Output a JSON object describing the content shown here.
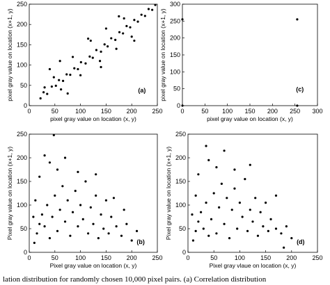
{
  "caption": "lation distribution for randomly chosen 10,000 pixel pairs. (a) Correlation distribution",
  "chart_data": [
    {
      "type": "scatter",
      "panel_tag": "(a)",
      "xlabel": "pixel gray value on location (x, y)",
      "ylabel": "pixel gray value on location (x+1, y)",
      "xlim": [
        0,
        250
      ],
      "ylim": [
        0,
        250
      ],
      "xticks": [
        "0",
        "50",
        "100",
        "150",
        "200",
        "250"
      ],
      "yticks": [
        "0",
        "50",
        "100",
        "150",
        "200",
        "250"
      ],
      "grid": false,
      "point_color": "#000000",
      "points": [
        [
          22,
          18
        ],
        [
          28,
          33
        ],
        [
          35,
          29
        ],
        [
          44,
          47
        ],
        [
          52,
          49
        ],
        [
          58,
          63
        ],
        [
          66,
          61
        ],
        [
          73,
          77
        ],
        [
          80,
          76
        ],
        [
          88,
          92
        ],
        [
          95,
          90
        ],
        [
          101,
          107
        ],
        [
          110,
          104
        ],
        [
          118,
          121
        ],
        [
          124,
          118
        ],
        [
          131,
          137
        ],
        [
          140,
          133
        ],
        [
          147,
          151
        ],
        [
          153,
          146
        ],
        [
          160,
          166
        ],
        [
          168,
          162
        ],
        [
          176,
          181
        ],
        [
          183,
          178
        ],
        [
          190,
          196
        ],
        [
          197,
          193
        ],
        [
          205,
          211
        ],
        [
          212,
          207
        ],
        [
          219,
          224
        ],
        [
          226,
          221
        ],
        [
          233,
          238
        ],
        [
          240,
          236
        ],
        [
          246,
          248
        ],
        [
          30,
          45
        ],
        [
          48,
          70
        ],
        [
          62,
          40
        ],
        [
          85,
          120
        ],
        [
          100,
          75
        ],
        [
          120,
          160
        ],
        [
          138,
          110
        ],
        [
          150,
          190
        ],
        [
          170,
          140
        ],
        [
          185,
          215
        ],
        [
          200,
          170
        ],
        [
          60,
          110
        ],
        [
          75,
          30
        ],
        [
          115,
          165
        ],
        [
          140,
          95
        ],
        [
          175,
          220
        ],
        [
          205,
          160
        ],
        [
          40,
          90
        ]
      ]
    },
    {
      "type": "scatter",
      "panel_tag": "(c)",
      "xlabel": "pixel gray value on location (x, y)",
      "ylabel": "pixel gray value on location (x+1, y)",
      "xlim": [
        0,
        300
      ],
      "ylim": [
        0,
        300
      ],
      "xticks": [
        "0",
        "50",
        "100",
        "150",
        "200",
        "250",
        "300"
      ],
      "yticks": [
        "0",
        "50",
        "100",
        "150",
        "200",
        "250",
        "300"
      ],
      "grid": false,
      "point_color": "#000000",
      "points": [
        [
          0,
          255
        ],
        [
          255,
          255
        ],
        [
          0,
          0
        ],
        [
          255,
          0
        ]
      ]
    },
    {
      "type": "scatter",
      "panel_tag": "(b)",
      "xlabel": "Pixel gray value on location (x, y)",
      "ylabel": "Pixel gray value on location (x+1, y)",
      "xlim": [
        0,
        250
      ],
      "ylim": [
        0,
        250
      ],
      "xticks": [
        "0",
        "50",
        "100",
        "150",
        "200",
        "250"
      ],
      "yticks": [
        "0",
        "50",
        "100",
        "150",
        "200",
        "250"
      ],
      "grid": false,
      "point_color": "#000000",
      "points": [
        [
          10,
          20
        ],
        [
          15,
          40
        ],
        [
          20,
          60
        ],
        [
          25,
          80
        ],
        [
          30,
          55
        ],
        [
          35,
          100
        ],
        [
          40,
          30
        ],
        [
          45,
          75
        ],
        [
          50,
          120
        ],
        [
          55,
          45
        ],
        [
          60,
          90
        ],
        [
          65,
          140
        ],
        [
          70,
          65
        ],
        [
          75,
          110
        ],
        [
          80,
          35
        ],
        [
          85,
          85
        ],
        [
          90,
          130
        ],
        [
          95,
          55
        ],
        [
          100,
          100
        ],
        [
          105,
          70
        ],
        [
          110,
          150
        ],
        [
          115,
          40
        ],
        [
          120,
          95
        ],
        [
          125,
          60
        ],
        [
          130,
          120
        ],
        [
          135,
          30
        ],
        [
          140,
          80
        ],
        [
          145,
          50
        ],
        [
          150,
          110
        ],
        [
          155,
          40
        ],
        [
          160,
          75
        ],
        [
          170,
          55
        ],
        [
          180,
          35
        ],
        [
          190,
          60
        ],
        [
          200,
          25
        ],
        [
          210,
          45
        ],
        [
          20,
          160
        ],
        [
          40,
          190
        ],
        [
          55,
          175
        ],
        [
          70,
          200
        ],
        [
          30,
          205
        ],
        [
          95,
          170
        ],
        [
          48,
          248
        ],
        [
          12,
          110
        ],
        [
          8,
          75
        ],
        [
          165,
          115
        ],
        [
          185,
          90
        ],
        [
          130,
          165
        ]
      ]
    },
    {
      "type": "scatter",
      "panel_tag": "(d)",
      "xlabel": "Pixel gray vlaue on location (x, y)",
      "ylabel": "Pixel gray value on location (x+1, y)",
      "xlim": [
        0,
        250
      ],
      "ylim": [
        0,
        250
      ],
      "xticks": [
        "0",
        "50",
        "100",
        "150",
        "200",
        "250"
      ],
      "yticks": [
        "0",
        "50",
        "100",
        "150",
        "200",
        "250"
      ],
      "grid": false,
      "point_color": "#000000",
      "points": [
        [
          10,
          25
        ],
        [
          15,
          45
        ],
        [
          20,
          65
        ],
        [
          25,
          85
        ],
        [
          30,
          50
        ],
        [
          35,
          105
        ],
        [
          40,
          35
        ],
        [
          45,
          70
        ],
        [
          50,
          125
        ],
        [
          55,
          40
        ],
        [
          60,
          95
        ],
        [
          65,
          145
        ],
        [
          70,
          60
        ],
        [
          75,
          115
        ],
        [
          80,
          30
        ],
        [
          85,
          90
        ],
        [
          90,
          135
        ],
        [
          95,
          50
        ],
        [
          100,
          105
        ],
        [
          105,
          75
        ],
        [
          110,
          155
        ],
        [
          115,
          45
        ],
        [
          120,
          90
        ],
        [
          125,
          65
        ],
        [
          130,
          115
        ],
        [
          135,
          35
        ],
        [
          140,
          85
        ],
        [
          145,
          55
        ],
        [
          150,
          105
        ],
        [
          155,
          45
        ],
        [
          160,
          70
        ],
        [
          170,
          50
        ],
        [
          180,
          40
        ],
        [
          190,
          55
        ],
        [
          200,
          30
        ],
        [
          20,
          165
        ],
        [
          40,
          195
        ],
        [
          55,
          180
        ],
        [
          70,
          215
        ],
        [
          35,
          225
        ],
        [
          90,
          175
        ],
        [
          15,
          120
        ],
        [
          8,
          80
        ],
        [
          170,
          120
        ],
        [
          185,
          10
        ],
        [
          120,
          185
        ]
      ]
    }
  ]
}
